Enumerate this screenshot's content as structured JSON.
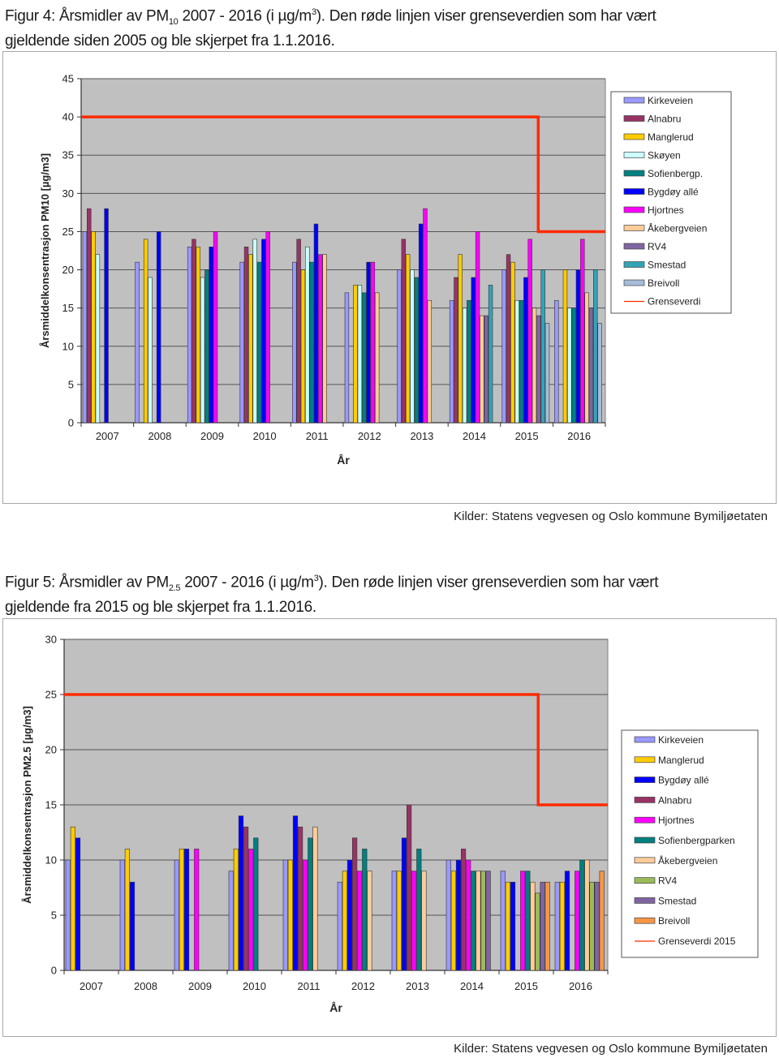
{
  "figure4": {
    "caption": {
      "prefix": "Figur 4: Årsmidler av PM",
      "sub": "10",
      "middle": " 2007 - 2016 (i µg/m",
      "sup": "3",
      "suffix": "). Den røde linjen viser grenseverdien som har vært",
      "line2": "gjeldende siden 2005 og ble skjerpet fra 1.1.2016."
    },
    "source": "Kilder: Statens vegvesen og Oslo kommune Bymiljøetaten"
  },
  "figure5": {
    "caption": {
      "prefix": "Figur 5: Årsmidler av PM",
      "sub": "2.5",
      "middle": " 2007 - 2016 (i µg/m",
      "sup": "3",
      "suffix": "). Den røde linjen viser grenseverdien som har vært",
      "line2": "gjeldende fra 2015 og ble skjerpet fra 1.1.2016."
    },
    "source": "Kilder: Statens vegvesen og Oslo kommune Bymiljøetaten"
  },
  "chart_data": [
    {
      "type": "bar",
      "title": "",
      "xlabel": "År",
      "ylabel": "Årsmiddelkonsentrasjon PM10 [µg/m3]",
      "ylim": [
        0,
        45
      ],
      "yticks": [
        0,
        5,
        10,
        15,
        20,
        25,
        30,
        35,
        40,
        45
      ],
      "grid": true,
      "legend_position": "right",
      "categories": [
        "2007",
        "2008",
        "2009",
        "2010",
        "2011",
        "2012",
        "2013",
        "2014",
        "2015",
        "2016"
      ],
      "series": [
        {
          "name": "Kirkeveien",
          "color": "#9999ff",
          "values": [
            25,
            21,
            23,
            21,
            21,
            17,
            20,
            16,
            20,
            16
          ]
        },
        {
          "name": "Alnabru",
          "color": "#993366",
          "values": [
            28,
            null,
            24,
            23,
            24,
            null,
            24,
            19,
            22,
            null
          ]
        },
        {
          "name": "Manglerud",
          "color": "#ffcc00",
          "values": [
            25,
            24,
            23,
            22,
            20,
            18,
            22,
            22,
            21,
            20
          ]
        },
        {
          "name": "Skøyen",
          "color": "#ccffff",
          "values": [
            22,
            19,
            19,
            24,
            23,
            18,
            20,
            15,
            16,
            15
          ]
        },
        {
          "name": "Sofienbergp.",
          "color": "#008080",
          "values": [
            null,
            null,
            20,
            21,
            21,
            17,
            19,
            16,
            16,
            15
          ]
        },
        {
          "name": "Bygdøy allé",
          "color": "#0000ff",
          "values": [
            28,
            25,
            23,
            24,
            26,
            21,
            26,
            19,
            19,
            20
          ]
        },
        {
          "name": "Hjortnes",
          "color": "#ff00ff",
          "values": [
            null,
            null,
            25,
            25,
            22,
            21,
            28,
            25,
            24,
            24
          ]
        },
        {
          "name": "Åkebergveien",
          "color": "#ffcc99",
          "values": [
            null,
            null,
            null,
            null,
            22,
            17,
            16,
            14,
            15,
            17
          ]
        },
        {
          "name": "RV4",
          "color": "#8064a2",
          "values": [
            null,
            null,
            null,
            null,
            null,
            null,
            null,
            14,
            14,
            15
          ]
        },
        {
          "name": "Smestad",
          "color": "#33a3b8",
          "values": [
            null,
            null,
            null,
            null,
            null,
            null,
            null,
            18,
            20,
            20
          ]
        },
        {
          "name": "Breivoll",
          "color": "#a6bcd9",
          "values": [
            null,
            null,
            null,
            null,
            null,
            null,
            null,
            null,
            13,
            13
          ]
        }
      ],
      "limit_line": {
        "name": "Grenseverdi",
        "color": "#ff2a00",
        "segments": [
          {
            "from": "2007",
            "to": "2015",
            "value": 40
          },
          {
            "from": "2016",
            "to": "2016",
            "value": 25
          }
        ]
      }
    },
    {
      "type": "bar",
      "title": "",
      "xlabel": "År",
      "ylabel": "Årsmiddelkonsentrasjon  PM2.5 [µg/m3]",
      "ylim": [
        0,
        30
      ],
      "yticks": [
        0,
        5,
        10,
        15,
        20,
        25,
        30
      ],
      "grid": true,
      "legend_position": "right",
      "categories": [
        "2007",
        "2008",
        "2009",
        "2010",
        "2011",
        "2012",
        "2013",
        "2014",
        "2015",
        "2016"
      ],
      "series": [
        {
          "name": "Kirkeveien",
          "color": "#9999ff",
          "values": [
            10,
            10,
            10,
            9,
            10,
            8,
            9,
            10,
            9,
            8
          ]
        },
        {
          "name": "Manglerud",
          "color": "#ffcc00",
          "values": [
            13,
            11,
            11,
            11,
            10,
            9,
            9,
            9,
            8,
            8
          ]
        },
        {
          "name": "Bygdøy allé",
          "color": "#0000ff",
          "values": [
            12,
            8,
            11,
            14,
            14,
            10,
            12,
            10,
            8,
            9
          ]
        },
        {
          "name": "Alnabru",
          "color": "#993366",
          "values": [
            null,
            null,
            null,
            13,
            13,
            12,
            15,
            11,
            null,
            null
          ]
        },
        {
          "name": "Hjortnes",
          "color": "#ff00ff",
          "values": [
            null,
            null,
            11,
            11,
            10,
            9,
            9,
            10,
            9,
            9
          ]
        },
        {
          "name": "Sofienbergparken",
          "color": "#008080",
          "values": [
            null,
            null,
            null,
            12,
            12,
            11,
            11,
            9,
            9,
            10
          ]
        },
        {
          "name": "Åkebergveien",
          "color": "#ffcc99",
          "values": [
            null,
            null,
            null,
            null,
            13,
            9,
            9,
            9,
            8,
            10
          ]
        },
        {
          "name": "RV4",
          "color": "#9bbb59",
          "values": [
            null,
            null,
            null,
            null,
            null,
            null,
            null,
            9,
            7,
            8
          ]
        },
        {
          "name": "Smestad",
          "color": "#8064a2",
          "values": [
            null,
            null,
            null,
            null,
            null,
            null,
            null,
            9,
            8,
            8
          ]
        },
        {
          "name": "Breivoll",
          "color": "#f79646",
          "values": [
            null,
            null,
            null,
            null,
            null,
            null,
            null,
            null,
            8,
            9
          ]
        }
      ],
      "limit_line": {
        "name": "Grenseverdi 2015",
        "color": "#ff2a00",
        "segments": [
          {
            "from": "2007",
            "to": "2015",
            "value": 25
          },
          {
            "from": "2016",
            "to": "2016",
            "value": 15
          }
        ]
      }
    }
  ]
}
